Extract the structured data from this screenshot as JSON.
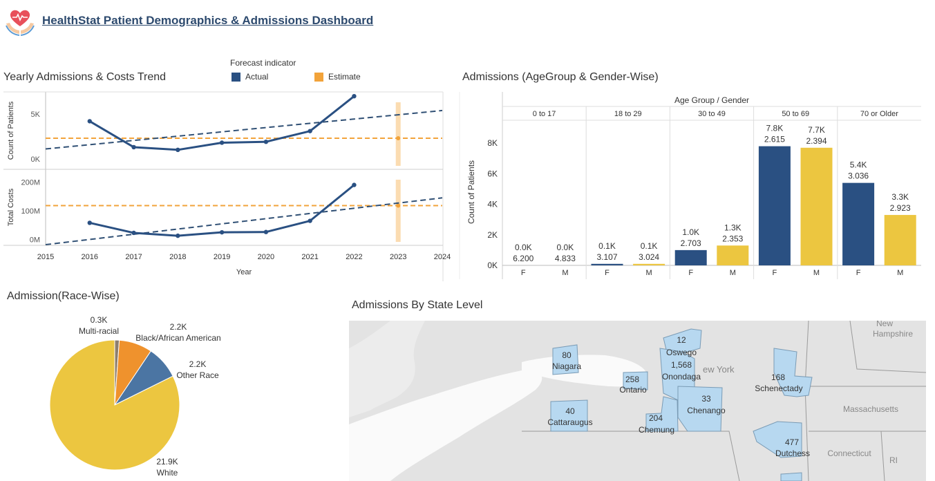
{
  "header": {
    "title": "HealthStat Patient Demographics & Admissions Dashboard",
    "logo_icon": "heart-in-hands-icon"
  },
  "colors": {
    "actual": "#2a5082",
    "estimate": "#f2a33a",
    "female": "#2a5082",
    "male": "#ecc640",
    "race_white": "#ecc640",
    "race_other": "#4b75a3",
    "race_black": "#ef922d",
    "race_multi": "#8c7e6e",
    "map_highlight": "#b7d8f0",
    "map_bg": "#e1e1e1"
  },
  "trend": {
    "title": "Yearly Admissions & Costs Trend",
    "legend_title": "Forecast indicator",
    "legend_actual": "Actual",
    "legend_estimate": "Estimate",
    "xlabel": "Year",
    "ylabel_top": "Count of Patients",
    "ylabel_bottom": "Total Costs"
  },
  "agegroup": {
    "title": "Admissions (AgeGroup & Gender-Wise)",
    "header_label": "Age Group  /  Gender",
    "ylabel": "Count of Patients"
  },
  "race": {
    "title": "Admission(Race-Wise)"
  },
  "map": {
    "title": "Admissions By State Level",
    "labels": {
      "new_york": "ew York",
      "new_hampshire_1": "New",
      "new_hampshire_2": "Hampshire",
      "massachusetts": "Massachusetts",
      "connecticut": "Connecticut",
      "ri": "RI"
    },
    "counties": [
      {
        "name": "Niagara",
        "value": "80"
      },
      {
        "name": "Ontario",
        "value": "258"
      },
      {
        "name": "Oswego",
        "value": "12"
      },
      {
        "name": "Onondaga",
        "value": "1,568"
      },
      {
        "name": "Chenango",
        "value": "33"
      },
      {
        "name": "Cattaraugus",
        "value": "40"
      },
      {
        "name": "Chemung",
        "value": "204"
      },
      {
        "name": "Schenectady",
        "value": "168"
      },
      {
        "name": "Dutchess",
        "value": "477"
      }
    ]
  },
  "chart_data": [
    {
      "type": "line",
      "title": "Yearly Admissions & Costs Trend",
      "xlabel": "Year",
      "x_ticks": [
        "2015",
        "2016",
        "2017",
        "2018",
        "2019",
        "2020",
        "2021",
        "2022",
        "2023",
        "2024"
      ],
      "xlim": [
        2015,
        2024
      ],
      "panels": [
        {
          "ylabel": "Count of Patients",
          "y_ticks": [
            {
              "v": 0,
              "label": "0K"
            },
            {
              "v": 5000,
              "label": "5K"
            }
          ],
          "ylim": [
            -1100,
            7400
          ],
          "series": [
            {
              "name": "Actual",
              "x": [
                2016,
                2017,
                2018,
                2019,
                2020,
                2021,
                2022
              ],
              "values": [
                4200,
                1300,
                1000,
                1800,
                1900,
                3100,
                7000
              ]
            }
          ],
          "trendline": {
            "x": [
              2015,
              2024
            ],
            "values": [
              1100,
              5400
            ]
          },
          "estimate": {
            "x": 2023,
            "value": 2300,
            "reference_line": 2300
          }
        },
        {
          "ylabel": "Total Costs",
          "y_ticks": [
            {
              "v": 0,
              "label": "0M"
            },
            {
              "v": 100,
              "label": "100M"
            },
            {
              "v": 200,
              "label": "200M"
            }
          ],
          "ylim": [
            -18,
            242
          ],
          "series": [
            {
              "name": "Actual",
              "x": [
                2016,
                2017,
                2018,
                2019,
                2020,
                2021,
                2022
              ],
              "values": [
                58,
                23,
                13,
                25,
                26,
                65,
                190
              ]
            }
          ],
          "trendline": {
            "x": [
              2015,
              2024
            ],
            "values": [
              -18,
              145
            ]
          },
          "estimate": {
            "x": 2023,
            "value": 118,
            "reference_line": 118
          }
        }
      ],
      "legend": [
        {
          "label": "Actual",
          "color": "#2a5082"
        },
        {
          "label": "Estimate",
          "color": "#f2a33a"
        }
      ]
    },
    {
      "type": "bar",
      "title": "Admissions (AgeGroup & Gender-Wise)",
      "ylabel": "Count of Patients",
      "ylim": [
        0,
        9500
      ],
      "y_ticks": [
        {
          "v": 0,
          "label": "0K"
        },
        {
          "v": 2000,
          "label": "2K"
        },
        {
          "v": 4000,
          "label": "4K"
        },
        {
          "v": 6000,
          "label": "6K"
        },
        {
          "v": 8000,
          "label": "8K"
        }
      ],
      "groups": [
        "0 to 17",
        "18 to 29",
        "30 to 49",
        "50 to 69",
        "70 or Older"
      ],
      "genders": [
        "F",
        "M"
      ],
      "bars": [
        {
          "group": "0 to 17",
          "gender": "F",
          "value": 0,
          "label1": "0.0K",
          "label2": "6.200"
        },
        {
          "group": "0 to 17",
          "gender": "M",
          "value": 0,
          "label1": "0.0K",
          "label2": "4.833"
        },
        {
          "group": "18 to 29",
          "gender": "F",
          "value": 100,
          "label1": "0.1K",
          "label2": "3.107"
        },
        {
          "group": "18 to 29",
          "gender": "M",
          "value": 100,
          "label1": "0.1K",
          "label2": "3.024"
        },
        {
          "group": "30 to 49",
          "gender": "F",
          "value": 1000,
          "label1": "1.0K",
          "label2": "2.703"
        },
        {
          "group": "30 to 49",
          "gender": "M",
          "value": 1300,
          "label1": "1.3K",
          "label2": "2.353"
        },
        {
          "group": "50 to 69",
          "gender": "F",
          "value": 7800,
          "label1": "7.8K",
          "label2": "2.615"
        },
        {
          "group": "50 to 69",
          "gender": "M",
          "value": 7700,
          "label1": "7.7K",
          "label2": "2.394"
        },
        {
          "group": "70 or Older",
          "gender": "F",
          "value": 5400,
          "label1": "5.4K",
          "label2": "3.036"
        },
        {
          "group": "70 or Older",
          "gender": "M",
          "value": 3300,
          "label1": "3.3K",
          "label2": "2.923"
        }
      ]
    },
    {
      "type": "pie",
      "title": "Admission(Race-Wise)",
      "slices": [
        {
          "name": "White",
          "value": 21.9,
          "label": "21.9K",
          "color_key": "race_white"
        },
        {
          "name": "Other Race",
          "value": 2.2,
          "label": "2.2K",
          "color_key": "race_other"
        },
        {
          "name": "Black/African American",
          "value": 2.2,
          "label": "2.2K",
          "color_key": "race_black"
        },
        {
          "name": "Multi-racial",
          "value": 0.3,
          "label": "0.3K",
          "color_key": "race_multi"
        }
      ]
    }
  ]
}
